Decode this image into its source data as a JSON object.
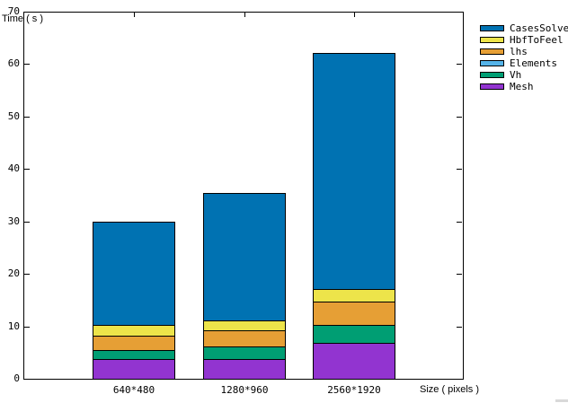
{
  "page": {
    "background": "#ffffff",
    "artifact_color": "#d9d9d9"
  },
  "chart_data": {
    "type": "bar",
    "stacked": true,
    "title": "",
    "ylabel": "Time ( s )",
    "xlabel": "Size ( pixels )",
    "categories": [
      "640*480",
      "1280*960",
      "2560*1920"
    ],
    "ylim": [
      0,
      70
    ],
    "yticks": [
      0,
      10,
      20,
      30,
      40,
      50,
      60,
      70
    ],
    "grid": false,
    "legend_position": "outside-right-top",
    "bar_border_color": "#000000",
    "stack_order_bottom_to_top": [
      "Mesh",
      "Vh",
      "Elements",
      "lhs",
      "HbfToFeel",
      "CasesSolve"
    ],
    "series": [
      {
        "name": "CasesSolve",
        "color": "#0072b2",
        "values": [
          19.8,
          24.3,
          45.1
        ]
      },
      {
        "name": "HbfToFeel",
        "color": "#ede44a",
        "values": [
          2.0,
          2.0,
          2.4
        ]
      },
      {
        "name": "lhs",
        "color": "#e69f35",
        "values": [
          2.7,
          3.0,
          4.4
        ]
      },
      {
        "name": "Elements",
        "color": "#56b4e9",
        "values": [
          0,
          0,
          0
        ]
      },
      {
        "name": "Vh",
        "color": "#009e73",
        "values": [
          1.7,
          2.4,
          3.5
        ]
      },
      {
        "name": "Mesh",
        "color": "#9234d0",
        "values": [
          3.8,
          3.8,
          6.8
        ]
      }
    ],
    "stacked_totals": [
      30.0,
      35.5,
      62.2
    ]
  }
}
